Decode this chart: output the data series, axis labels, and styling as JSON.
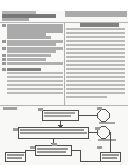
{
  "background_color": "#f5f5f0",
  "barcode_color": "#111111",
  "text_dark": "#222222",
  "text_mid": "#444444",
  "text_light": "#888888",
  "line_color": "#999999",
  "box_edge": "#555555",
  "page_bg": "#f8f8f6",
  "header_bg": "#ffffff",
  "diagram_bg": "#ffffff"
}
